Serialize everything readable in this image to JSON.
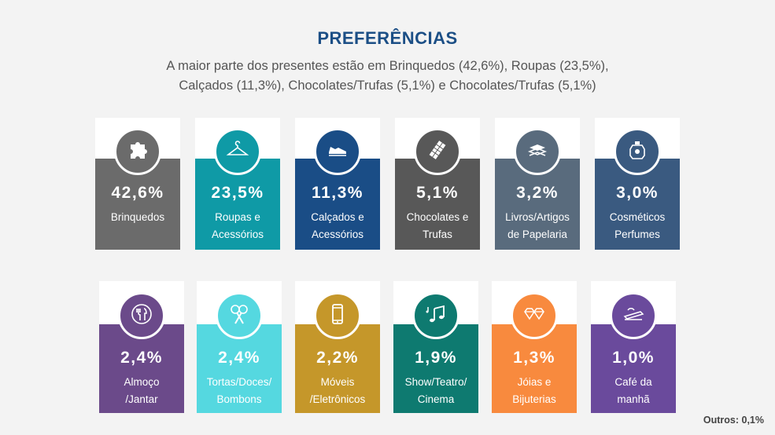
{
  "header": {
    "title": "PREFERÊNCIAS",
    "subtitle_line1": "A maior parte dos presentes estão em Brinquedos (42,6%), Roupas (23,5%),",
    "subtitle_line2": "Calçados (11,3%), Chocolates/Trufas (5,1%) e Chocolates/Trufas (5,1%)"
  },
  "row1": [
    {
      "pct": "42,6%",
      "line1": "Brinquedos",
      "line2": "",
      "color": "#6b6b6b",
      "icon": "puzzle-icon"
    },
    {
      "pct": "23,5%",
      "line1": "Roupas e",
      "line2": "Acessórios",
      "color": "#0f9aa6",
      "icon": "hanger-icon"
    },
    {
      "pct": "11,3%",
      "line1": "Calçados e",
      "line2": "Acessórios",
      "color": "#1a4d86",
      "icon": "sneaker-icon"
    },
    {
      "pct": "5,1%",
      "line1": "Chocolates e",
      "line2": "Trufas",
      "color": "#585858",
      "icon": "chocolate-icon"
    },
    {
      "pct": "3,2%",
      "line1": "Livros/Artigos",
      "line2": "de Papelaria",
      "color": "#596b7d",
      "icon": "books-icon"
    },
    {
      "pct": "3,0%",
      "line1": "Cosméticos",
      "line2": "Perfumes",
      "color": "#3a5a80",
      "icon": "perfume-icon"
    }
  ],
  "row2": [
    {
      "pct": "2,4%",
      "line1": "Almoço",
      "line2": "/Jantar",
      "color": "#6b4a8a",
      "icon": "cutlery-icon"
    },
    {
      "pct": "2,4%",
      "line1": "Tortas/Doces/",
      "line2": "Bombons",
      "color": "#55d8e0",
      "icon": "candy-icon"
    },
    {
      "pct": "2,2%",
      "line1": "Móveis",
      "line2": "/Eletrônicos",
      "color": "#c5972a",
      "icon": "phone-icon"
    },
    {
      "pct": "1,9%",
      "line1": "Show/Teatro/",
      "line2": "Cinema",
      "color": "#0e7a70",
      "icon": "music-icon"
    },
    {
      "pct": "1,3%",
      "line1": "Jóias e",
      "line2": "Bijuterias",
      "color": "#f88a3e",
      "icon": "diamond-icon"
    },
    {
      "pct": "1,0%",
      "line1": "Café da",
      "line2": "manhã",
      "color": "#6a4a9c",
      "icon": "breakfast-icon"
    }
  ],
  "footer": {
    "outros": "Outros: 0,1%"
  }
}
